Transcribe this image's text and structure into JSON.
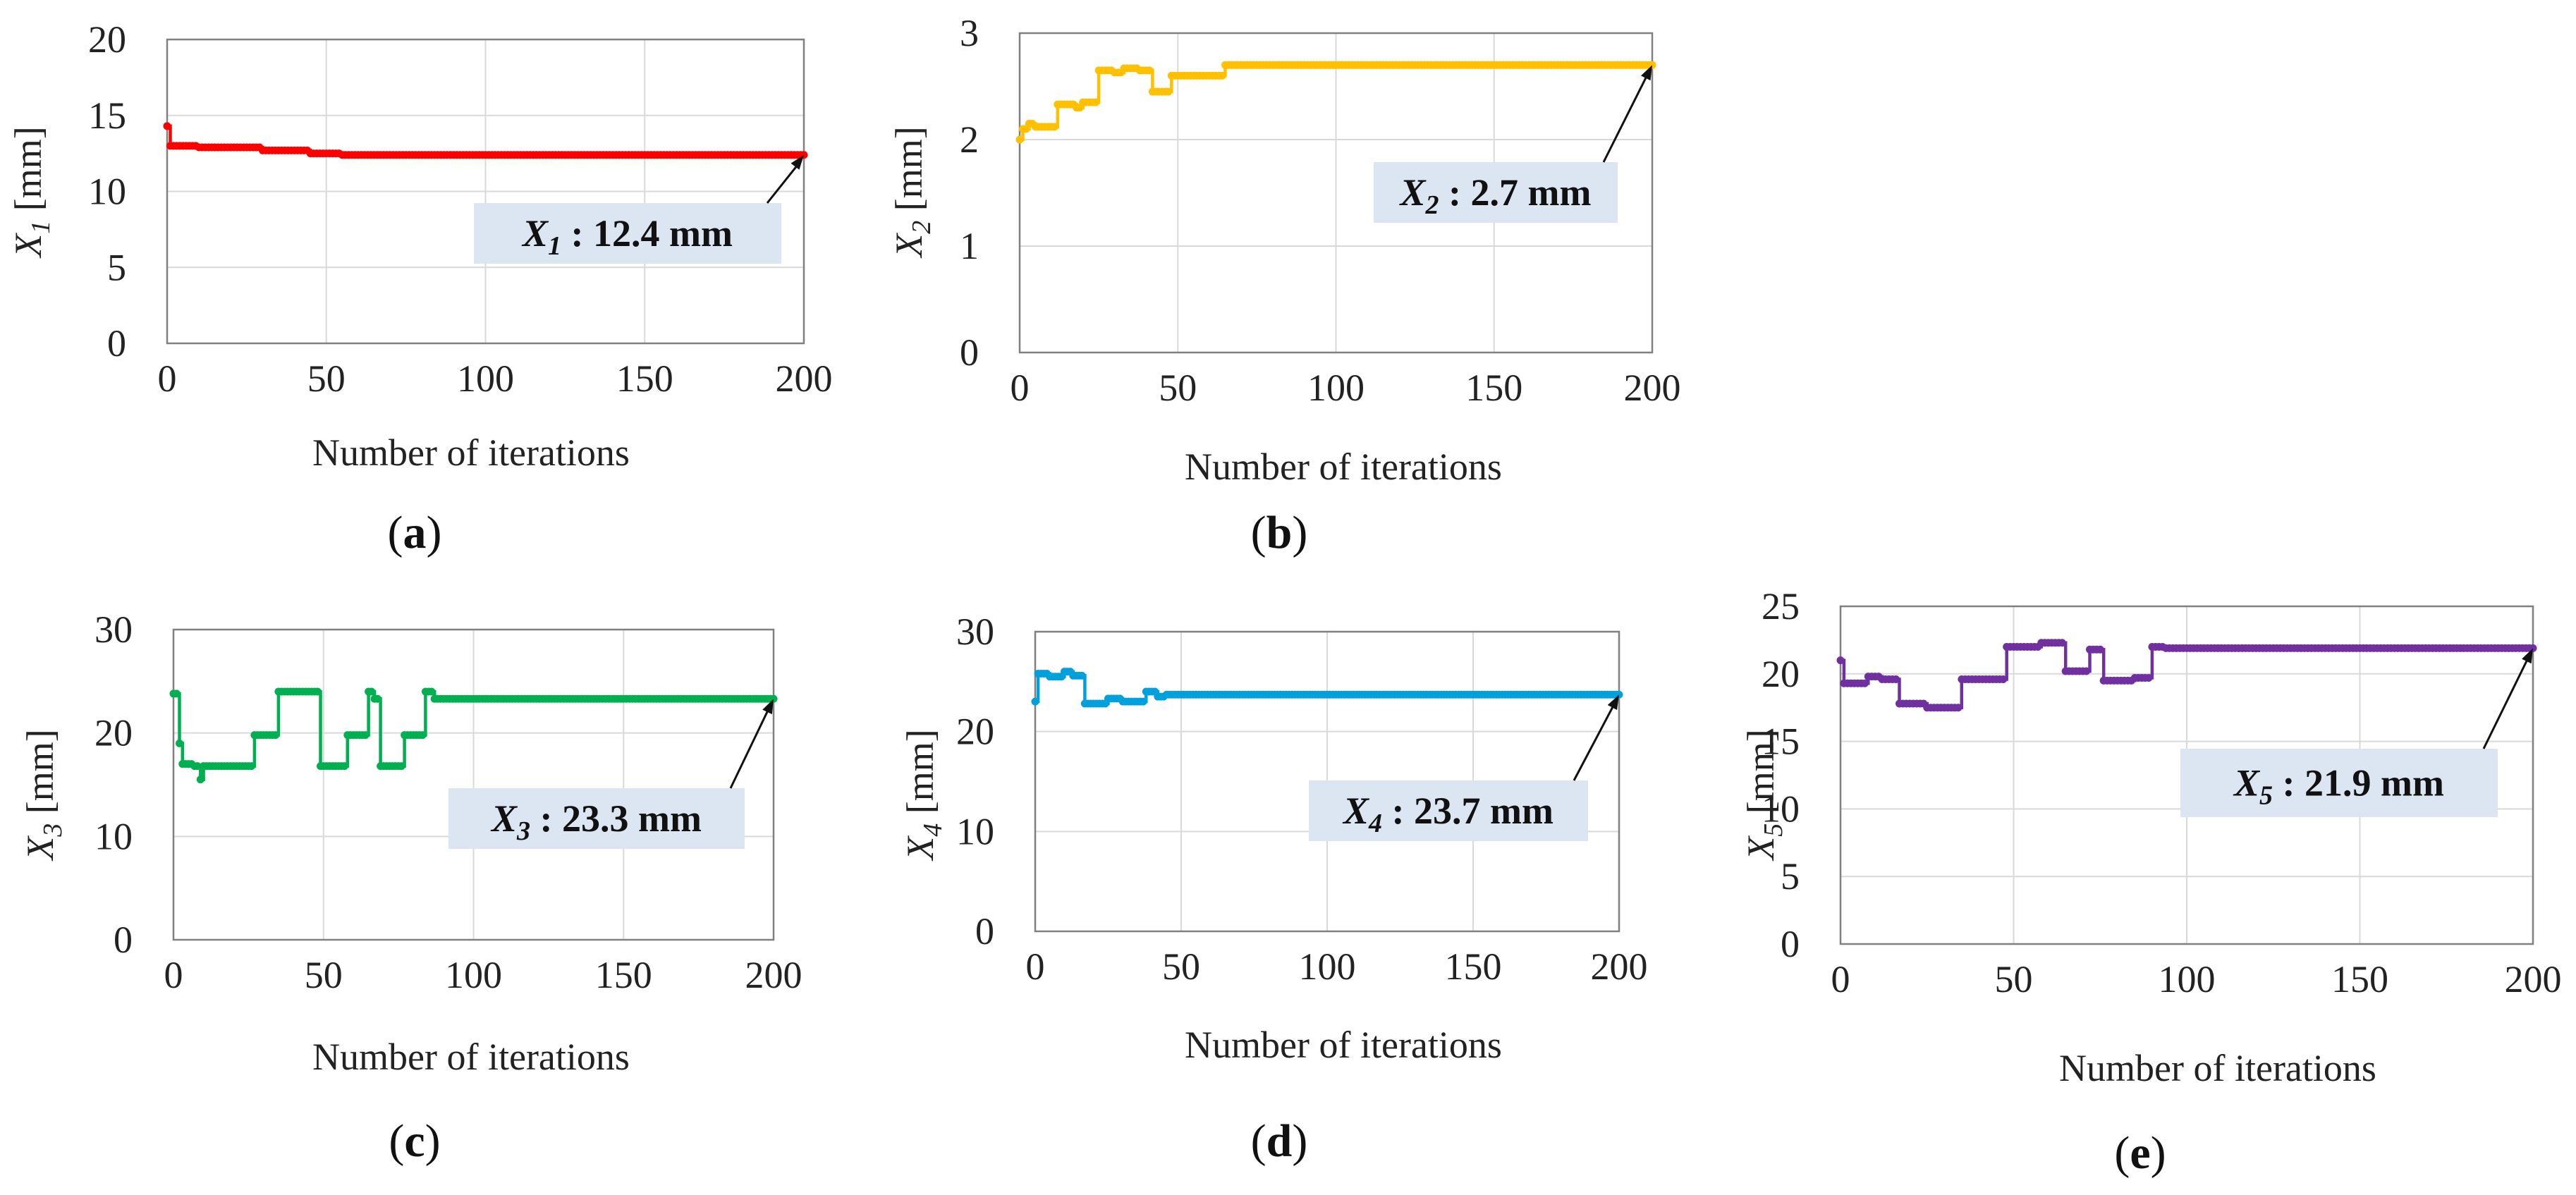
{
  "chart_data": [
    {
      "type": "line",
      "panel_label": "(a)",
      "title": "",
      "xlabel": "Number of iterations",
      "ylabel_base": "X",
      "ylabel_sub": "1",
      "ylabel_unit": " [mm]",
      "xlim": [
        0,
        200
      ],
      "ylim": [
        0,
        20
      ],
      "xticks": [
        0,
        50,
        100,
        150,
        200
      ],
      "yticks": [
        0,
        5,
        10,
        15,
        20
      ],
      "xtick_labels": [
        "0",
        "50",
        "100",
        "150",
        "200"
      ],
      "ytick_labels": [
        "0",
        "5",
        "10",
        "15",
        "20"
      ],
      "grid": true,
      "color": "#ff0000",
      "steps": [
        [
          0,
          14.3
        ],
        [
          1,
          13.0
        ],
        [
          10,
          12.9
        ],
        [
          30,
          12.7
        ],
        [
          45,
          12.5
        ],
        [
          55,
          12.4
        ],
        [
          200,
          12.4
        ]
      ],
      "annotation": {
        "text_base": "X",
        "text_sub": "1",
        "text_rest": " : 12.4 mm",
        "point": [
          200,
          12.4
        ]
      }
    },
    {
      "type": "line",
      "panel_label": "(b)",
      "title": "",
      "xlabel": "Number of iterations",
      "ylabel_base": "X",
      "ylabel_sub": "2",
      "ylabel_unit": " [mm]",
      "xlim": [
        0,
        200
      ],
      "ylim": [
        0,
        3
      ],
      "xticks": [
        0,
        50,
        100,
        150,
        200
      ],
      "yticks": [
        0,
        1,
        2,
        3
      ],
      "xtick_labels": [
        "0",
        "50",
        "100",
        "150",
        "200"
      ],
      "ytick_labels": [
        "0",
        "1",
        "2",
        "3"
      ],
      "grid": true,
      "color": "#ffc000",
      "steps": [
        [
          0,
          2.0
        ],
        [
          1,
          2.1
        ],
        [
          3,
          2.15
        ],
        [
          5,
          2.12
        ],
        [
          12,
          2.33
        ],
        [
          18,
          2.3
        ],
        [
          20,
          2.35
        ],
        [
          25,
          2.65
        ],
        [
          30,
          2.63
        ],
        [
          33,
          2.67
        ],
        [
          38,
          2.65
        ],
        [
          42,
          2.45
        ],
        [
          48,
          2.6
        ],
        [
          65,
          2.7
        ],
        [
          200,
          2.7
        ]
      ],
      "annotation": {
        "text_base": "X",
        "text_sub": "2",
        "text_rest": " : 2.7 mm",
        "point": [
          200,
          2.7
        ]
      }
    },
    {
      "type": "line",
      "panel_label": "(c)",
      "title": "",
      "xlabel": "Number of iterations",
      "ylabel_base": "X",
      "ylabel_sub": "3",
      "ylabel_unit": " [mm]",
      "xlim": [
        0,
        200
      ],
      "ylim": [
        0,
        30
      ],
      "xticks": [
        0,
        50,
        100,
        150,
        200
      ],
      "yticks": [
        0,
        10,
        20,
        30
      ],
      "xtick_labels": [
        "0",
        "50",
        "100",
        "150",
        "200"
      ],
      "ytick_labels": [
        "0",
        "10",
        "20",
        "30"
      ],
      "grid": true,
      "color": "#00b050",
      "steps": [
        [
          0,
          23.8
        ],
        [
          2,
          19.0
        ],
        [
          3,
          17.0
        ],
        [
          7,
          16.8
        ],
        [
          9,
          15.5
        ],
        [
          10,
          16.8
        ],
        [
          27,
          19.8
        ],
        [
          35,
          24.0
        ],
        [
          49,
          16.8
        ],
        [
          58,
          19.8
        ],
        [
          65,
          24.0
        ],
        [
          67,
          23.3
        ],
        [
          69,
          16.8
        ],
        [
          77,
          19.8
        ],
        [
          84,
          24.0
        ],
        [
          87,
          23.3
        ],
        [
          200,
          23.3
        ]
      ],
      "annotation": {
        "text_base": "X",
        "text_sub": "3",
        "text_rest": " : 23.3 mm",
        "point": [
          200,
          23.3
        ]
      }
    },
    {
      "type": "line",
      "panel_label": "(d)",
      "title": "",
      "xlabel": "Number of iterations",
      "ylabel_base": "X",
      "ylabel_sub": "4",
      "ylabel_unit": " [mm]",
      "xlim": [
        0,
        200
      ],
      "ylim": [
        0,
        30
      ],
      "xticks": [
        0,
        50,
        100,
        150,
        200
      ],
      "yticks": [
        0,
        10,
        20,
        30
      ],
      "xtick_labels": [
        "0",
        "50",
        "100",
        "150",
        "200"
      ],
      "ytick_labels": [
        "0",
        "10",
        "20",
        "30"
      ],
      "grid": true,
      "color": "#00a0dc",
      "steps": [
        [
          0,
          23.0
        ],
        [
          1,
          25.8
        ],
        [
          5,
          25.5
        ],
        [
          10,
          26.0
        ],
        [
          13,
          25.6
        ],
        [
          17,
          22.8
        ],
        [
          25,
          23.3
        ],
        [
          30,
          23.0
        ],
        [
          38,
          24.0
        ],
        [
          42,
          23.5
        ],
        [
          45,
          23.7
        ],
        [
          200,
          23.7
        ]
      ],
      "annotation": {
        "text_base": "X",
        "text_sub": "4",
        "text_rest": " : 23.7 mm",
        "point": [
          200,
          23.7
        ]
      }
    },
    {
      "type": "line",
      "panel_label": "(e)",
      "title": "",
      "xlabel": "Number of iterations",
      "ylabel_base": "X",
      "ylabel_sub": "5",
      "ylabel_unit": " [mm]",
      "xlim": [
        0,
        200
      ],
      "ylim": [
        0,
        25
      ],
      "xticks": [
        0,
        50,
        100,
        150,
        200
      ],
      "yticks": [
        0,
        5,
        10,
        15,
        20,
        25
      ],
      "xtick_labels": [
        "0",
        "50",
        "100",
        "150",
        "200"
      ],
      "ytick_labels": [
        "0",
        "5",
        "10",
        "15",
        "20",
        "25"
      ],
      "grid": true,
      "color": "#7030a0",
      "steps": [
        [
          0,
          21.0
        ],
        [
          1,
          19.3
        ],
        [
          8,
          19.8
        ],
        [
          12,
          19.6
        ],
        [
          17,
          17.8
        ],
        [
          25,
          17.5
        ],
        [
          35,
          19.6
        ],
        [
          48,
          22.0
        ],
        [
          58,
          22.3
        ],
        [
          65,
          20.2
        ],
        [
          72,
          21.8
        ],
        [
          76,
          19.5
        ],
        [
          85,
          19.7
        ],
        [
          90,
          22.0
        ],
        [
          94,
          21.9
        ],
        [
          200,
          21.9
        ]
      ],
      "annotation": {
        "text_base": "X",
        "text_sub": "5",
        "text_rest": " : 21.9 mm",
        "point": [
          200,
          21.9
        ]
      }
    }
  ],
  "colors": {
    "gridline": "#d9d9d9",
    "frame": "#808080",
    "annotation_bg": "#dce6f2",
    "text": "#222222"
  }
}
